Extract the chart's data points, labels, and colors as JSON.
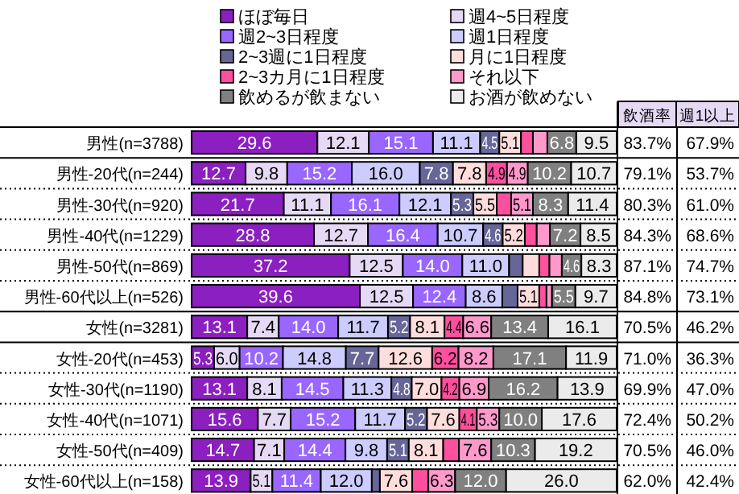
{
  "chart_data": {
    "type": "bar",
    "orientation": "horizontal",
    "stacked": true,
    "legend": "top",
    "tick_labels": "y",
    "xlim": [
      0,
      100
    ],
    "categories": [
      "男性(n=3788)",
      "男性-20代(n=244)",
      "男性-30代(n=920)",
      "男性-40代(n=1229)",
      "男性-50代(n=869)",
      "男性-60代以上(n=526)",
      "女性(n=3281)",
      "女性-20代(n=453)",
      "女性-30代(n=1190)",
      "女性-40代(n=1071)",
      "女性-50代(n=409)",
      "女性-60代以上(n=158)"
    ],
    "series": [
      {
        "name": "ほぼ毎日",
        "color": "#8b1fbf",
        "values": [
          29.6,
          12.7,
          21.7,
          28.8,
          37.2,
          39.6,
          13.1,
          5.3,
          13.1,
          15.6,
          14.7,
          13.9
        ],
        "value_labels": [
          "29.6",
          "12.7",
          "21.7",
          "28.8",
          "37.2",
          "39.6",
          "13.1",
          "5.3",
          "13.1",
          "15.6",
          "14.7",
          "13.9"
        ]
      },
      {
        "name": "週4~5日程度",
        "color": "#e6d9f5",
        "values": [
          12.1,
          9.8,
          11.1,
          12.7,
          12.5,
          12.5,
          7.4,
          6.0,
          8.1,
          7.7,
          7.1,
          5.1
        ],
        "value_labels": [
          "12.1",
          "9.8",
          "11.1",
          "12.7",
          "12.5",
          "12.5",
          "7.4",
          "6.0",
          "8.1",
          "7.7",
          "7.1",
          "5.1"
        ]
      },
      {
        "name": "週2~3日程度",
        "color": "#9966ff",
        "values": [
          15.1,
          15.2,
          16.1,
          16.4,
          14.0,
          12.4,
          14.0,
          10.2,
          14.5,
          15.2,
          14.4,
          11.4
        ],
        "value_labels": [
          "15.1",
          "15.2",
          "16.1",
          "16.4",
          "14.0",
          "12.4",
          "14.0",
          "10.2",
          "14.5",
          "15.2",
          "14.4",
          "11.4"
        ]
      },
      {
        "name": "週1日程度",
        "color": "#ccccff",
        "values": [
          11.1,
          16.0,
          12.1,
          10.7,
          11.0,
          8.6,
          11.7,
          14.8,
          11.3,
          11.7,
          9.8,
          12.0
        ],
        "value_labels": [
          "11.1",
          "16.0",
          "12.1",
          "10.7",
          "11.0",
          "8.6",
          "11.7",
          "14.8",
          "11.3",
          "11.7",
          "9.8",
          "12.0"
        ]
      },
      {
        "name": "2~3週に1日程度",
        "color": "#666699",
        "values": [
          4.5,
          7.8,
          5.3,
          4.6,
          3.2,
          3.6,
          5.2,
          7.7,
          4.8,
          5.2,
          5.1,
          1.9
        ],
        "value_labels": [
          "4.5",
          "7.8",
          "5.3",
          "4.6",
          null,
          null,
          "5.2",
          "7.7",
          "4.8",
          "5.2",
          "5.1",
          null
        ]
      },
      {
        "name": "月に1日程度",
        "color": "#ffdddd",
        "values": [
          5.1,
          7.8,
          5.5,
          5.2,
          3.9,
          5.1,
          8.1,
          12.6,
          7.0,
          7.6,
          8.1,
          7.6
        ],
        "value_labels": [
          "5.1",
          "7.8",
          "5.5",
          "5.2",
          null,
          "5.1",
          "8.1",
          "12.6",
          "7.0",
          "7.6",
          "8.1",
          "7.6"
        ]
      },
      {
        "name": "2~3カ月に1日程度",
        "color": "#ff4f9f",
        "values": [
          2.8,
          4.9,
          3.4,
          2.8,
          2.4,
          1.7,
          4.4,
          6.2,
          4.2,
          4.1,
          3.7,
          3.8
        ],
        "value_labels": [
          null,
          "4.9",
          null,
          null,
          null,
          null,
          "4.4",
          "6.2",
          "4.2",
          "4.1",
          null,
          null
        ]
      },
      {
        "name": "それ以下",
        "color": "#ff99cc",
        "values": [
          3.4,
          4.9,
          5.1,
          3.1,
          2.9,
          1.3,
          6.6,
          8.2,
          6.9,
          5.3,
          7.6,
          6.3
        ],
        "value_labels": [
          null,
          "4.9",
          "5.1",
          null,
          null,
          null,
          "6.6",
          "8.2",
          "6.9",
          "5.3",
          "7.6",
          "6.3"
        ]
      },
      {
        "name": "飲めるが飲まない",
        "color": "#808080",
        "values": [
          6.8,
          10.2,
          8.3,
          7.2,
          4.6,
          5.5,
          13.4,
          17.1,
          16.2,
          10.0,
          10.3,
          12.0
        ],
        "value_labels": [
          "6.8",
          "10.2",
          "8.3",
          "7.2",
          "4.6",
          "5.5",
          "13.4",
          "17.1",
          "16.2",
          "10.0",
          "10.3",
          "12.0"
        ]
      },
      {
        "name": "お酒が飲めない",
        "color": "#ebebeb",
        "values": [
          9.5,
          10.7,
          11.4,
          8.5,
          8.3,
          9.7,
          16.1,
          11.9,
          13.9,
          17.6,
          19.2,
          26.0
        ],
        "value_labels": [
          "9.5",
          "10.7",
          "11.4",
          "8.5",
          "8.3",
          "9.7",
          "16.1",
          "11.9",
          "13.9",
          "17.6",
          "19.2",
          "26.0"
        ]
      }
    ],
    "annotations": [
      "飲酒率",
      "週1以上",
      "83.7%",
      "67.9%",
      "79.1%",
      "53.7%",
      "80.3%",
      "61.0%",
      "84.3%",
      "68.6%",
      "87.1%",
      "74.7%",
      "84.8%",
      "73.1%",
      "70.5%",
      "46.2%",
      "71.0%",
      "36.3%",
      "69.9%",
      "47.0%",
      "72.4%",
      "50.2%",
      "70.5%",
      "46.0%",
      "62.0%",
      "42.4%"
    ]
  }
}
